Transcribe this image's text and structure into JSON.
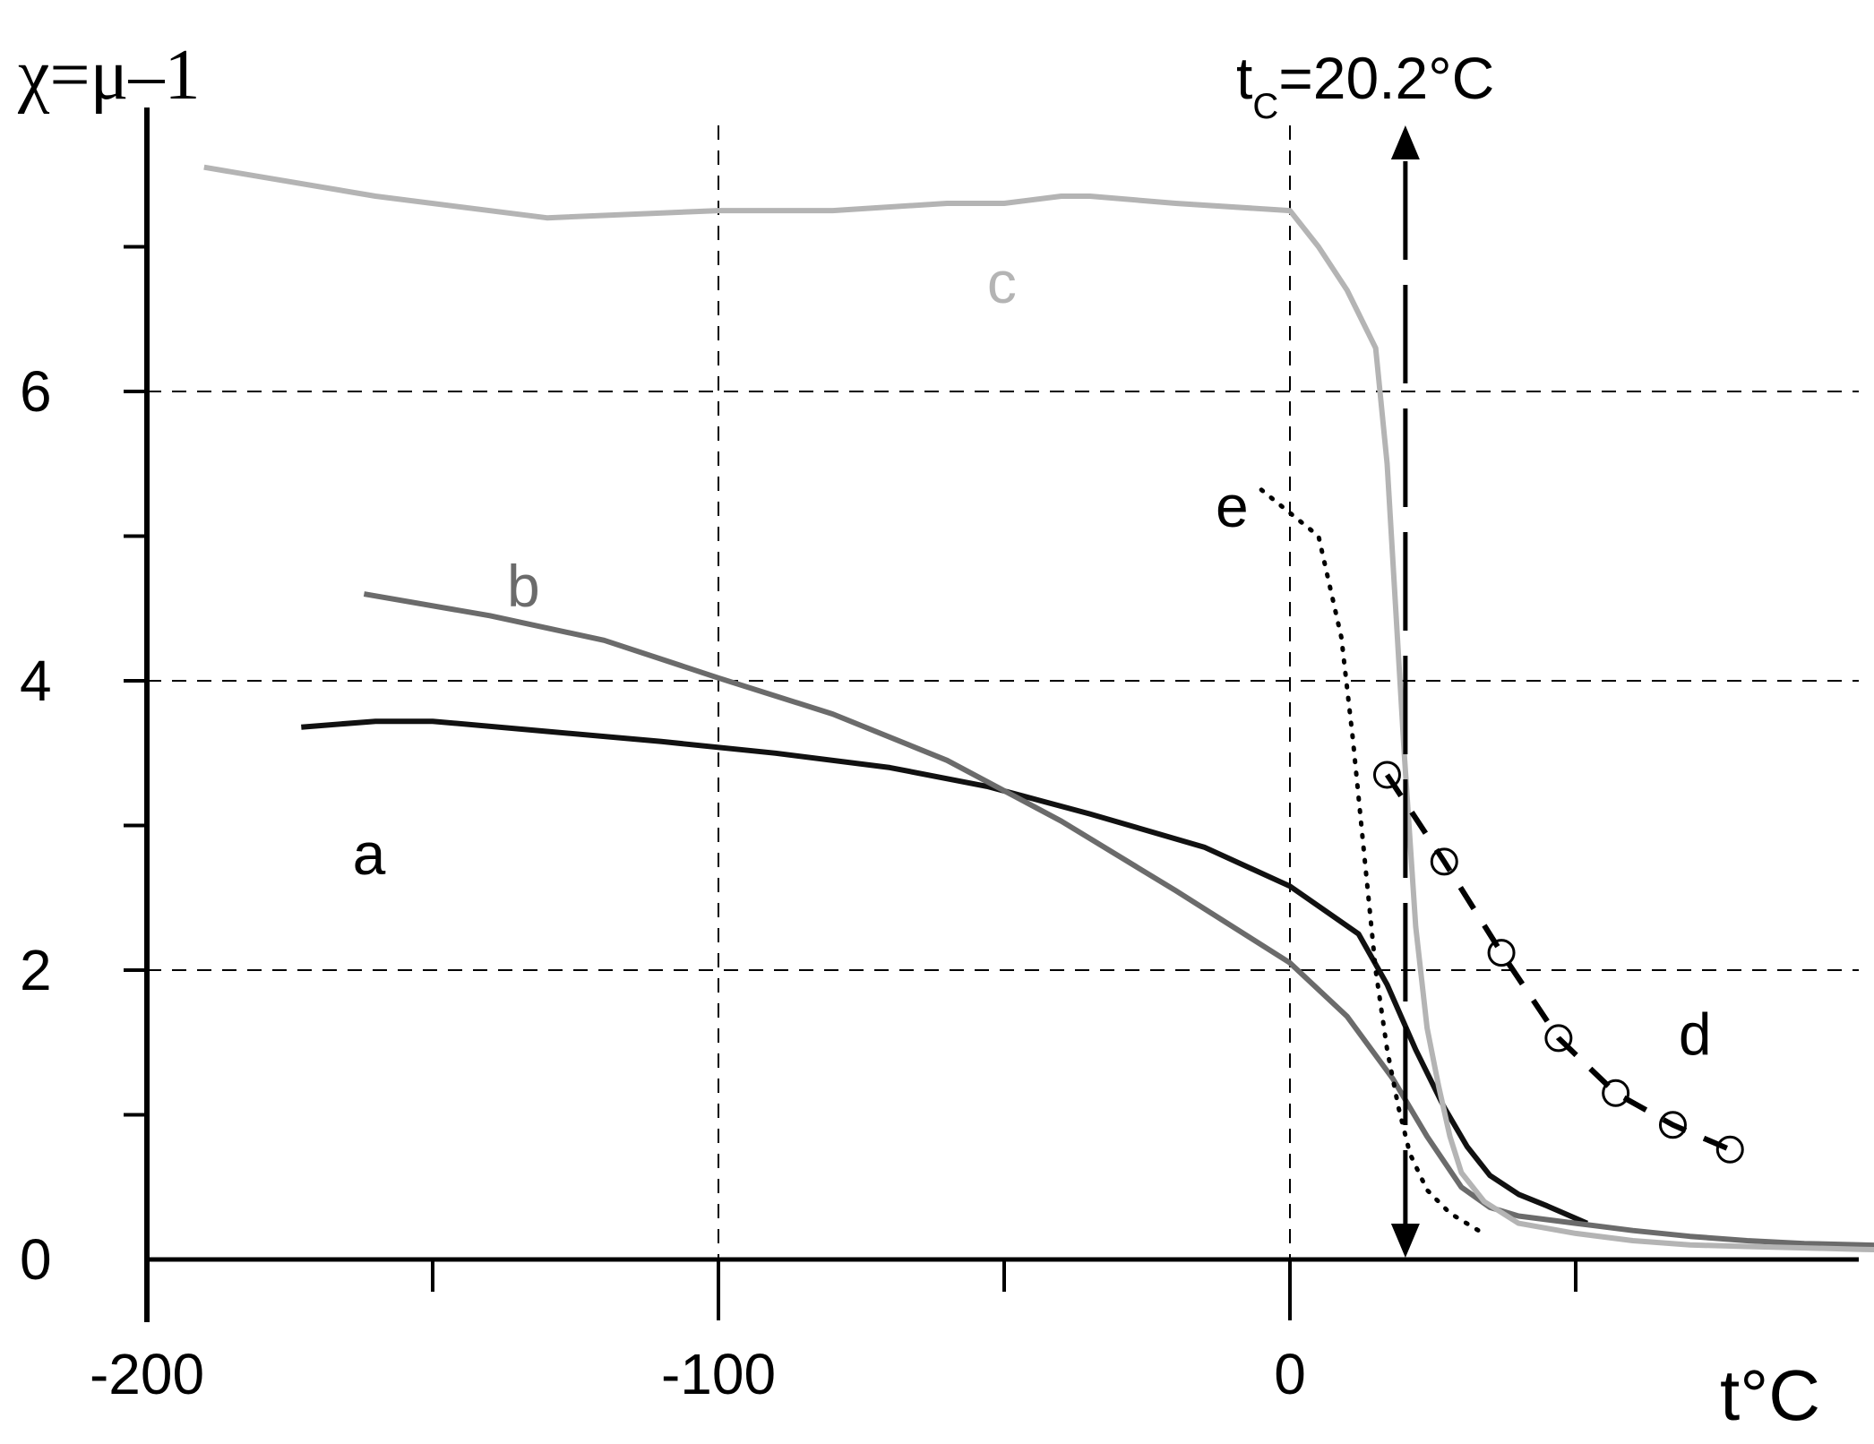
{
  "chart_data": {
    "type": "line",
    "title": "",
    "xlabel": "t°C",
    "ylabel": "χ=μ–1",
    "xlim": [
      -200,
      190
    ],
    "ylim": [
      0,
      8
    ],
    "x_ticks": [
      -200,
      -100,
      0
    ],
    "y_ticks": [
      0,
      2,
      4,
      6
    ],
    "grid": {
      "vertical_dashed_at": [
        -100,
        0
      ],
      "horizontal_dashed_at": [
        2,
        4,
        6
      ]
    },
    "annotation": {
      "text_main": "t",
      "text_sub": "C",
      "text_rest": "=20.2°C",
      "x": 20.2
    },
    "colors": {
      "a": "#111111",
      "b": "#6b6b6b",
      "c": "#b4b4b4",
      "d": "#000000",
      "e": "#000000"
    },
    "series": [
      {
        "name": "a",
        "x": [
          -173,
          -160,
          -150,
          -130,
          -110,
          -90,
          -70,
          -53,
          -35,
          -15,
          0,
          12,
          17,
          22,
          27,
          31,
          35,
          40,
          45,
          52
        ],
        "y": [
          3.68,
          3.72,
          3.72,
          3.65,
          3.58,
          3.5,
          3.4,
          3.27,
          3.08,
          2.85,
          2.58,
          2.25,
          1.9,
          1.45,
          1.05,
          0.78,
          0.58,
          0.45,
          0.37,
          0.25
        ]
      },
      {
        "name": "b",
        "x": [
          -162,
          -140,
          -120,
          -100,
          -80,
          -60,
          -40,
          -20,
          0,
          10,
          18,
          24,
          30,
          35,
          40,
          50,
          60,
          70,
          80,
          90,
          100,
          110,
          120,
          130,
          140,
          150,
          160,
          170,
          180
        ],
        "y": [
          4.6,
          4.45,
          4.28,
          4.02,
          3.77,
          3.45,
          3.03,
          2.55,
          2.05,
          1.68,
          1.25,
          0.85,
          0.5,
          0.36,
          0.3,
          0.25,
          0.2,
          0.16,
          0.13,
          0.11,
          0.1,
          0.09,
          0.08,
          0.07,
          0.06,
          0.06,
          0.05,
          0.05,
          0.04
        ]
      },
      {
        "name": "c",
        "x": [
          -190,
          -160,
          -130,
          -100,
          -80,
          -60,
          -50,
          -40,
          -35,
          -20,
          0,
          5,
          10,
          15,
          17,
          20,
          22,
          24,
          26,
          28,
          30,
          34,
          40,
          50,
          60,
          70,
          80,
          90,
          100,
          110,
          120,
          130,
          140,
          150
        ],
        "y": [
          7.55,
          7.35,
          7.2,
          7.25,
          7.25,
          7.3,
          7.3,
          7.35,
          7.35,
          7.3,
          7.25,
          7.0,
          6.7,
          6.3,
          5.5,
          3.5,
          2.3,
          1.6,
          1.2,
          0.85,
          0.6,
          0.4,
          0.25,
          0.18,
          0.13,
          0.1,
          0.09,
          0.08,
          0.07,
          0.06,
          0.06,
          0.05,
          0.05,
          0.04
        ]
      },
      {
        "name": "d",
        "x": [
          17,
          27,
          37,
          47,
          57,
          67,
          77
        ],
        "y": [
          3.35,
          2.75,
          2.12,
          1.53,
          1.15,
          0.93,
          0.76
        ]
      },
      {
        "name": "e",
        "x": [
          -5,
          5,
          9,
          11,
          13,
          15,
          17,
          19,
          21,
          24,
          28,
          33
        ],
        "y": [
          5.32,
          5.0,
          4.3,
          3.6,
          2.8,
          2.0,
          1.45,
          1.05,
          0.73,
          0.48,
          0.32,
          0.2
        ]
      }
    ],
    "series_label_positions": {
      "a": [
        -164,
        2.8
      ],
      "b": [
        -137,
        4.65
      ],
      "c": [
        -53,
        6.75
      ],
      "d": [
        68,
        1.55
      ],
      "e": [
        -13,
        5.2
      ]
    }
  }
}
